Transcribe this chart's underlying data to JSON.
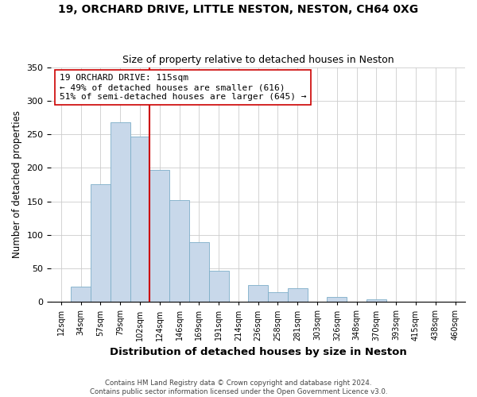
{
  "title": "19, ORCHARD DRIVE, LITTLE NESTON, NESTON, CH64 0XG",
  "subtitle": "Size of property relative to detached houses in Neston",
  "xlabel": "Distribution of detached houses by size in Neston",
  "ylabel": "Number of detached properties",
  "bar_labels": [
    "12sqm",
    "34sqm",
    "57sqm",
    "79sqm",
    "102sqm",
    "124sqm",
    "146sqm",
    "169sqm",
    "191sqm",
    "214sqm",
    "236sqm",
    "258sqm",
    "281sqm",
    "303sqm",
    "326sqm",
    "348sqm",
    "370sqm",
    "393sqm",
    "415sqm",
    "438sqm",
    "460sqm"
  ],
  "bar_heights": [
    0,
    23,
    175,
    268,
    247,
    197,
    152,
    89,
    47,
    0,
    25,
    14,
    21,
    0,
    7,
    0,
    4,
    0,
    0,
    0,
    0
  ],
  "bar_color": "#c8d8ea",
  "bar_edge_color": "#7daec8",
  "vline_x_idx": 4.5,
  "vline_color": "#cc0000",
  "annotation_title": "19 ORCHARD DRIVE: 115sqm",
  "annotation_line1": "← 49% of detached houses are smaller (616)",
  "annotation_line2": "51% of semi-detached houses are larger (645) →",
  "annotation_box_color": "#ffffff",
  "annotation_box_edge": "#cc0000",
  "ylim": [
    0,
    350
  ],
  "yticks": [
    0,
    50,
    100,
    150,
    200,
    250,
    300,
    350
  ],
  "footer1": "Contains HM Land Registry data © Crown copyright and database right 2024.",
  "footer2": "Contains public sector information licensed under the Open Government Licence v3.0."
}
